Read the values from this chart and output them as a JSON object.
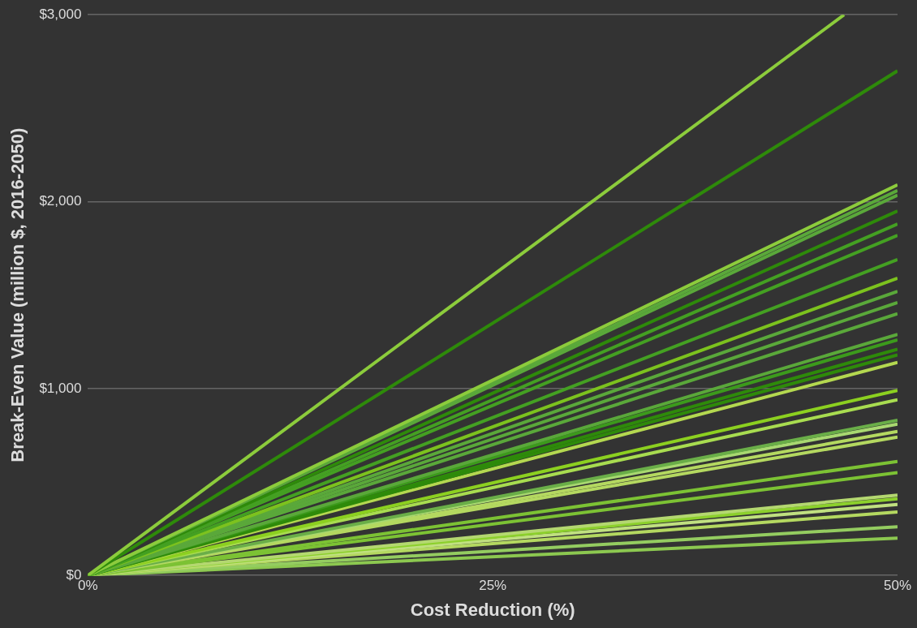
{
  "chart_data": {
    "type": "line",
    "xlabel": "Cost Reduction (%)",
    "ylabel": "Break-Even Value (million $, 2016-2050)",
    "x": [
      0,
      50
    ],
    "xlim": [
      0,
      50
    ],
    "xticks": [
      {
        "value": 0,
        "label": "0%"
      },
      {
        "value": 25,
        "label": "25%"
      },
      {
        "value": 50,
        "label": "50%"
      }
    ],
    "ylim": [
      0,
      3000
    ],
    "yticks": [
      {
        "value": 0,
        "label": "$0"
      },
      {
        "value": 1000,
        "label": "$1,000"
      },
      {
        "value": 2000,
        "label": "$2,000"
      },
      {
        "value": 3000,
        "label": "$3,000"
      }
    ],
    "grid": "y",
    "legend": false,
    "marker": "none",
    "line_style": "solid",
    "series": [
      {
        "color": "#8ccc3c",
        "x": [
          0,
          46.7
        ],
        "values": [
          0,
          3000
        ]
      },
      {
        "color": "#2e8a0a",
        "values": [
          0,
          2700
        ]
      },
      {
        "color": "#8ccc3c",
        "values": [
          0,
          2090
        ]
      },
      {
        "color": "#5aa83a",
        "values": [
          0,
          2060
        ]
      },
      {
        "color": "#5aa83a",
        "values": [
          0,
          2035
        ]
      },
      {
        "color": "#2e8a0a",
        "values": [
          0,
          1950
        ]
      },
      {
        "color": "#44a022",
        "values": [
          0,
          1880
        ]
      },
      {
        "color": "#44a022",
        "values": [
          0,
          1820
        ]
      },
      {
        "color": "#44a022",
        "values": [
          0,
          1690
        ]
      },
      {
        "color": "#7cc21e",
        "values": [
          0,
          1590
        ]
      },
      {
        "color": "#5aa83a",
        "values": [
          0,
          1520
        ]
      },
      {
        "color": "#5aa83a",
        "values": [
          0,
          1460
        ]
      },
      {
        "color": "#5aa83a",
        "values": [
          0,
          1400
        ]
      },
      {
        "color": "#5aa83a",
        "values": [
          0,
          1290
        ]
      },
      {
        "color": "#3c9a1c",
        "values": [
          0,
          1260
        ]
      },
      {
        "color": "#2e8a0a",
        "values": [
          0,
          1210
        ]
      },
      {
        "color": "#2e8a0a",
        "values": [
          0,
          1180
        ]
      },
      {
        "color": "#b4d850",
        "values": [
          0,
          1140
        ]
      },
      {
        "color": "#8cd020",
        "values": [
          0,
          990
        ]
      },
      {
        "color": "#a8dc50",
        "values": [
          0,
          940
        ]
      },
      {
        "color": "#6aae48",
        "values": [
          0,
          830
        ]
      },
      {
        "color": "#a8d870",
        "values": [
          0,
          810
        ]
      },
      {
        "color": "#b4d860",
        "values": [
          0,
          770
        ]
      },
      {
        "color": "#b4d860",
        "values": [
          0,
          740
        ]
      },
      {
        "color": "#7cc234",
        "values": [
          0,
          610
        ]
      },
      {
        "color": "#7cc234",
        "values": [
          0,
          550
        ]
      },
      {
        "color": "#b4d870",
        "values": [
          0,
          430
        ]
      },
      {
        "color": "#8cd02c",
        "values": [
          0,
          410
        ]
      },
      {
        "color": "#c0e080",
        "values": [
          0,
          380
        ]
      },
      {
        "color": "#b4d860",
        "values": [
          0,
          340
        ]
      },
      {
        "color": "#94cc60",
        "values": [
          0,
          260
        ]
      },
      {
        "color": "#8cc850",
        "values": [
          0,
          200
        ]
      }
    ]
  }
}
